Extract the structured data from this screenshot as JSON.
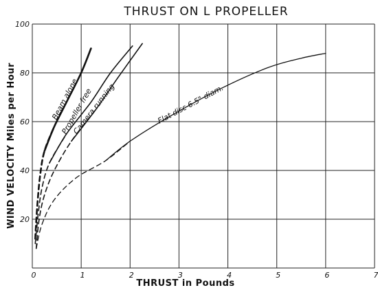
{
  "chart_data": {
    "type": "line",
    "title": "THRUST ON L PROPELLER",
    "xlabel": "THRUST in Pounds",
    "ylabel": "WIND VELOCITY Miles per Hour",
    "xlim": [
      0,
      7
    ],
    "ylim": [
      0,
      100
    ],
    "grid": true,
    "x_ticks": [
      "0",
      "1",
      "2",
      "3",
      "4",
      "5",
      "6",
      "7"
    ],
    "y_ticks": [
      "20",
      "40",
      "60",
      "80",
      "100"
    ],
    "series": [
      {
        "name": "Beam alone",
        "line_style": "heavy-solid-dashed-below-55",
        "points": [
          [
            0.06,
            12
          ],
          [
            0.1,
            25
          ],
          [
            0.16,
            38
          ],
          [
            0.25,
            48
          ],
          [
            0.45,
            58
          ],
          [
            0.7,
            68
          ],
          [
            1.0,
            80
          ],
          [
            1.2,
            90
          ]
        ]
      },
      {
        "name": "Propeller free",
        "line_style": "solid-dashed-below-55",
        "points": [
          [
            0.06,
            10
          ],
          [
            0.12,
            22
          ],
          [
            0.2,
            33
          ],
          [
            0.35,
            43
          ],
          [
            0.7,
            55
          ],
          [
            1.2,
            68
          ],
          [
            1.6,
            80
          ],
          [
            2.05,
            91
          ]
        ]
      },
      {
        "name": "Camera running",
        "line_style": "solid-dashed-below-55",
        "points": [
          [
            0.08,
            8
          ],
          [
            0.14,
            20
          ],
          [
            0.25,
            30
          ],
          [
            0.45,
            40
          ],
          [
            0.8,
            52
          ],
          [
            1.3,
            65
          ],
          [
            1.75,
            78
          ],
          [
            2.25,
            92
          ]
        ]
      },
      {
        "name": "Flat disc 6.5\" diam.",
        "line_style": "dashed-then-solid-above-50",
        "points": [
          [
            0.08,
            8
          ],
          [
            0.2,
            18
          ],
          [
            0.45,
            28
          ],
          [
            0.9,
            37
          ],
          [
            1.5,
            44
          ],
          [
            2.0,
            52
          ],
          [
            2.8,
            62
          ],
          [
            3.8,
            73
          ],
          [
            4.8,
            82
          ],
          [
            5.5,
            86
          ],
          [
            6.0,
            88
          ]
        ]
      }
    ]
  }
}
